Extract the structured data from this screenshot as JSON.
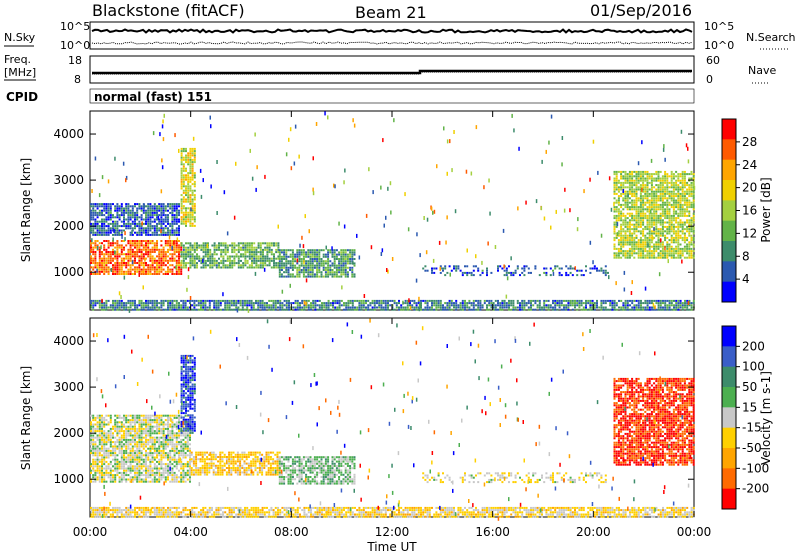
{
  "header": {
    "title": "Blackstone (fitACF)",
    "beam": "Beam 21",
    "date": "01/Sep/2016"
  },
  "top_panel": {
    "nsky_label": "N.Sky",
    "nsky_ticks": [
      "10^5",
      "10^0"
    ],
    "nsearch_label": "N.Search",
    "nsearch_ticks": [
      "10^5",
      "10^0"
    ]
  },
  "freq_panel": {
    "freq_label_line1": "Freq.",
    "freq_label_line2": "[MHz]",
    "freq_ticks": [
      "18",
      "8"
    ],
    "nave_label": "Nave",
    "nave_ticks": [
      "60",
      "0"
    ]
  },
  "cpid": {
    "label": "CPID",
    "value": "normal (fast) 151"
  },
  "colors": {
    "power_scale": [
      "#0000ff",
      "#2b59b0",
      "#3d8c6b",
      "#62b348",
      "#a4d040",
      "#f0d000",
      "#ffa500",
      "#ff5a00",
      "#ff0000"
    ],
    "velocity_scale": [
      "#0000ff",
      "#3a5ec8",
      "#3d8c6b",
      "#4caf50",
      "#c8c8c8",
      "#ffd000",
      "#ffa500",
      "#ff6a00",
      "#ff0000"
    ]
  },
  "chart_data": [
    {
      "type": "heatmap",
      "name": "power",
      "xlabel": "Time UT",
      "ylabel": "Slant Range [km]",
      "xlim": [
        0,
        24
      ],
      "ylim": [
        180,
        4500
      ],
      "y_ticks": [
        "1000",
        "2000",
        "3000",
        "4000"
      ],
      "colorbar_label": "Power [dB]",
      "colorbar_ticks": [
        "4",
        "8",
        "12",
        "16",
        "20",
        "24",
        "28"
      ],
      "colorbar_range": [
        0,
        32
      ],
      "regions": [
        {
          "desc": "intense near-range band",
          "x": [
            0.0,
            3.6
          ],
          "y": [
            950,
            1700
          ],
          "value": 26
        },
        {
          "desc": "band tail",
          "x": [
            3.6,
            7.5
          ],
          "y": [
            1100,
            1650
          ],
          "value": 12
        },
        {
          "desc": "mid-morning patch",
          "x": [
            7.5,
            10.5
          ],
          "y": [
            900,
            1500
          ],
          "value": 10
        },
        {
          "desc": "far-range upper echoes",
          "x": [
            0.0,
            3.5
          ],
          "y": [
            1800,
            2500
          ],
          "value": 6
        },
        {
          "desc": "echo spike",
          "x": [
            3.6,
            4.2
          ],
          "y": [
            2000,
            3700
          ],
          "value": 18
        },
        {
          "desc": "afternoon thin line",
          "x": [
            13.2,
            20.6
          ],
          "y": [
            950,
            1150
          ],
          "value": 6
        },
        {
          "desc": "late evening arc",
          "x": [
            20.8,
            24.0
          ],
          "y": [
            1300,
            3200
          ],
          "value": 16
        },
        {
          "desc": "ground scatter floor",
          "x": [
            0.0,
            24.0
          ],
          "y": [
            200,
            400
          ],
          "value": 8
        }
      ]
    },
    {
      "type": "heatmap",
      "name": "velocity",
      "xlabel": "Time UT",
      "ylabel": "Slant Range [km]",
      "xlim": [
        0,
        24
      ],
      "ylim": [
        180,
        4500
      ],
      "y_ticks": [
        "1000",
        "2000",
        "3000",
        "4000"
      ],
      "x_ticks": [
        "00:00",
        "04:00",
        "08:00",
        "12:00",
        "16:00",
        "20:00",
        "00:00"
      ],
      "colorbar_label": "Velocity [m s-1]",
      "colorbar_ticks": [
        "200",
        "100",
        "50",
        "15",
        "-15",
        "-50",
        "-100",
        "-200"
      ],
      "colorbar_range": [
        -250,
        250
      ],
      "regions": [
        {
          "desc": "ground scatter near range",
          "x": [
            0.0,
            4.0
          ],
          "y": [
            950,
            2400
          ],
          "value": 0
        },
        {
          "desc": "echo spike",
          "x": [
            3.6,
            4.2
          ],
          "y": [
            2000,
            3700
          ],
          "value": 180
        },
        {
          "desc": "band tail",
          "x": [
            4.0,
            7.5
          ],
          "y": [
            1100,
            1600
          ],
          "value": -60
        },
        {
          "desc": "mid-morning patch",
          "x": [
            7.5,
            10.5
          ],
          "y": [
            900,
            1500
          ],
          "value": 40
        },
        {
          "desc": "afternoon thin line",
          "x": [
            13.2,
            20.6
          ],
          "y": [
            950,
            1150
          ],
          "value": -20
        },
        {
          "desc": "late evening arc",
          "x": [
            20.8,
            24.0
          ],
          "y": [
            1300,
            3200
          ],
          "value": -200
        },
        {
          "desc": "near range floor",
          "x": [
            0.0,
            24.0
          ],
          "y": [
            200,
            400
          ],
          "value": -40
        }
      ]
    }
  ]
}
